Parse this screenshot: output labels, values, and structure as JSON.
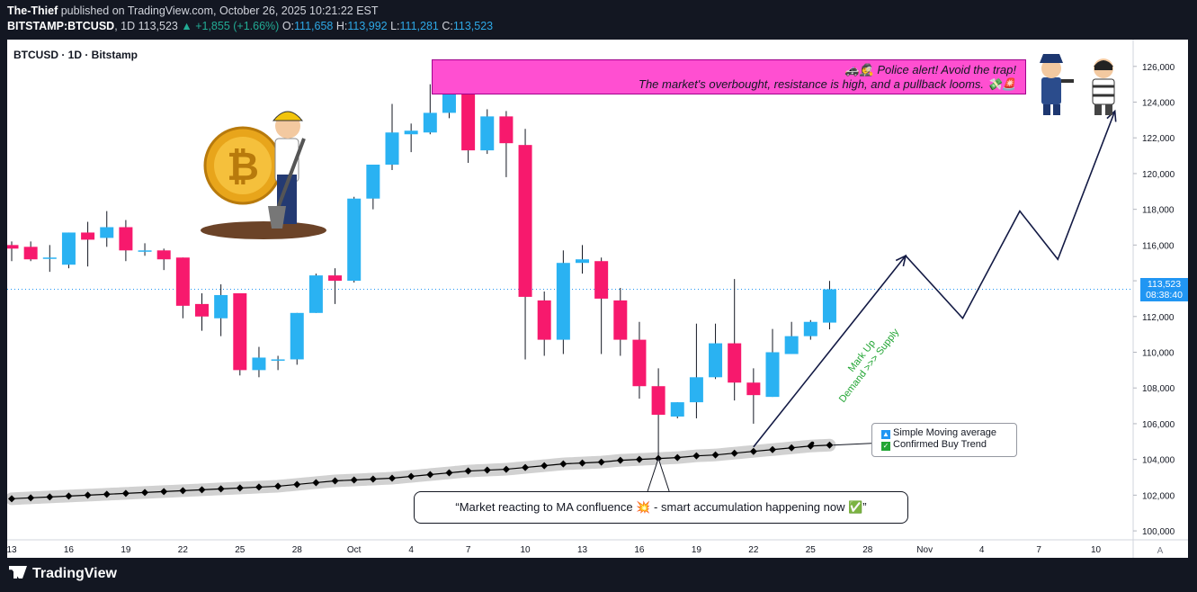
{
  "header": {
    "author": "The-Thief",
    "published": " published on TradingView.com, October 26, 2025 10:21:22 EST",
    "symbol": "BITSTAMP:BTCUSD",
    "interval": ", 1D ",
    "last": "113,523",
    "change": "▲ +1,855 (+1.66%)",
    "o_label": "O:",
    "o": "111,658",
    "h_label": "H:",
    "h": "113,992",
    "l_label": "L:",
    "l": "111,281",
    "c_label": "C:",
    "c": "113,523"
  },
  "chart_title": "BTCUSD · 1D · Bitstamp",
  "price_tag": {
    "price": "113,523",
    "countdown": "08:38:40"
  },
  "alert": {
    "line1": "🚓🕵 Police alert!  Avoid the trap!",
    "line2": "The market's overbought, resistance is high, and a pullback looms. 💸🚨"
  },
  "legend": {
    "line1": "Simple Moving average",
    "line2": "Confirmed Buy Trend"
  },
  "callout": "“Market reacting to MA confluence 💥 - smart accumulation happening now ✅”",
  "markup_label": {
    "line1": "Mark Up",
    "line2": "Demand >>> Supply"
  },
  "footer": {
    "brand": "TradingView",
    "scale_mode": "A"
  },
  "colors": {
    "up": "#2ab2f2",
    "down": "#f7196d",
    "ma": "#000000",
    "alert_bg": "#ff4fd1",
    "accent": "#2196f3"
  },
  "icons": [
    "bitcoin-miner-illustration",
    "police-illustration",
    "thief-illustration",
    "tradingview-logo-icon"
  ],
  "chart_data": {
    "type": "candlestick",
    "title": "BTCUSD · 1D · Bitstamp",
    "ylim": [
      99500,
      127500
    ],
    "y_ticks": [
      100000,
      102000,
      104000,
      106000,
      108000,
      110000,
      112000,
      114000,
      116000,
      118000,
      120000,
      122000,
      124000,
      126000
    ],
    "x_ticks": [
      {
        "day": 0,
        "label": "13"
      },
      {
        "day": 3,
        "label": "16"
      },
      {
        "day": 6,
        "label": "19"
      },
      {
        "day": 9,
        "label": "22"
      },
      {
        "day": 12,
        "label": "25"
      },
      {
        "day": 15,
        "label": "28"
      },
      {
        "day": 18,
        "label": "Oct"
      },
      {
        "day": 21,
        "label": "4"
      },
      {
        "day": 24,
        "label": "7"
      },
      {
        "day": 27,
        "label": "10"
      },
      {
        "day": 30,
        "label": "13"
      },
      {
        "day": 33,
        "label": "16"
      },
      {
        "day": 36,
        "label": "19"
      },
      {
        "day": 39,
        "label": "22"
      },
      {
        "day": 42,
        "label": "25"
      },
      {
        "day": 45,
        "label": "28"
      },
      {
        "day": 48,
        "label": "Nov"
      },
      {
        "day": 51,
        "label": "4"
      },
      {
        "day": 54,
        "label": "7"
      },
      {
        "day": 57,
        "label": "10"
      }
    ],
    "candles": [
      {
        "day": 0,
        "o": 116000,
        "h": 116200,
        "l": 115100,
        "c": 115800
      },
      {
        "day": 1,
        "o": 115900,
        "h": 116200,
        "l": 115100,
        "c": 115200
      },
      {
        "day": 2,
        "o": 115300,
        "h": 116000,
        "l": 114500,
        "c": 115300
      },
      {
        "day": 3,
        "o": 114900,
        "h": 116700,
        "l": 114700,
        "c": 116700
      },
      {
        "day": 4,
        "o": 116700,
        "h": 117300,
        "l": 114800,
        "c": 116300
      },
      {
        "day": 5,
        "o": 116400,
        "h": 117900,
        "l": 115900,
        "c": 117000
      },
      {
        "day": 6,
        "o": 117000,
        "h": 117400,
        "l": 115100,
        "c": 115700
      },
      {
        "day": 7,
        "o": 115700,
        "h": 116100,
        "l": 115400,
        "c": 115700
      },
      {
        "day": 8,
        "o": 115700,
        "h": 115800,
        "l": 114600,
        "c": 115200
      },
      {
        "day": 9,
        "o": 115300,
        "h": 115300,
        "l": 111900,
        "c": 112600
      },
      {
        "day": 10,
        "o": 112700,
        "h": 113300,
        "l": 111200,
        "c": 112000
      },
      {
        "day": 11,
        "o": 111900,
        "h": 113800,
        "l": 110900,
        "c": 113200
      },
      {
        "day": 12,
        "o": 113300,
        "h": 113300,
        "l": 108700,
        "c": 109000
      },
      {
        "day": 13,
        "o": 109000,
        "h": 110300,
        "l": 108600,
        "c": 109700
      },
      {
        "day": 14,
        "o": 109600,
        "h": 109800,
        "l": 109000,
        "c": 109600
      },
      {
        "day": 15,
        "o": 109600,
        "h": 112200,
        "l": 109300,
        "c": 112200
      },
      {
        "day": 16,
        "o": 112200,
        "h": 114400,
        "l": 112200,
        "c": 114300
      },
      {
        "day": 17,
        "o": 114300,
        "h": 114700,
        "l": 112700,
        "c": 114000
      },
      {
        "day": 18,
        "o": 114000,
        "h": 118700,
        "l": 113900,
        "c": 118600
      },
      {
        "day": 19,
        "o": 118600,
        "h": 120500,
        "l": 118000,
        "c": 120500
      },
      {
        "day": 20,
        "o": 120500,
        "h": 123900,
        "l": 120200,
        "c": 122300
      },
      {
        "day": 21,
        "o": 122200,
        "h": 122800,
        "l": 121200,
        "c": 122400
      },
      {
        "day": 22,
        "o": 122300,
        "h": 125000,
        "l": 122200,
        "c": 123400
      },
      {
        "day": 23,
        "o": 123400,
        "h": 126200,
        "l": 123100,
        "c": 124700
      },
      {
        "day": 24,
        "o": 124700,
        "h": 125100,
        "l": 120600,
        "c": 121300
      },
      {
        "day": 25,
        "o": 121300,
        "h": 123600,
        "l": 121100,
        "c": 123200
      },
      {
        "day": 26,
        "o": 123200,
        "h": 123500,
        "l": 119800,
        "c": 121700
      },
      {
        "day": 27,
        "o": 121600,
        "h": 122500,
        "l": 109600,
        "c": 113100
      },
      {
        "day": 28,
        "o": 112900,
        "h": 113400,
        "l": 109800,
        "c": 110700
      },
      {
        "day": 29,
        "o": 110700,
        "h": 115700,
        "l": 109900,
        "c": 115000
      },
      {
        "day": 30,
        "o": 115000,
        "h": 116000,
        "l": 114400,
        "c": 115200
      },
      {
        "day": 31,
        "o": 115100,
        "h": 115300,
        "l": 109900,
        "c": 113000
      },
      {
        "day": 32,
        "o": 112900,
        "h": 113600,
        "l": 109800,
        "c": 110700
      },
      {
        "day": 33,
        "o": 110700,
        "h": 111700,
        "l": 107400,
        "c": 108100
      },
      {
        "day": 34,
        "o": 108100,
        "h": 109100,
        "l": 103500,
        "c": 106500
      },
      {
        "day": 35,
        "o": 106400,
        "h": 107200,
        "l": 106300,
        "c": 107200
      },
      {
        "day": 36,
        "o": 107200,
        "h": 111600,
        "l": 106300,
        "c": 108600
      },
      {
        "day": 37,
        "o": 108600,
        "h": 111600,
        "l": 108500,
        "c": 110500
      },
      {
        "day": 38,
        "o": 110500,
        "h": 114100,
        "l": 107300,
        "c": 108300
      },
      {
        "day": 39,
        "o": 108300,
        "h": 109100,
        "l": 106000,
        "c": 107600
      },
      {
        "day": 40,
        "o": 107500,
        "h": 111300,
        "l": 107500,
        "c": 110000
      },
      {
        "day": 41,
        "o": 109900,
        "h": 111700,
        "l": 109900,
        "c": 110900
      },
      {
        "day": 42,
        "o": 110900,
        "h": 111800,
        "l": 110700,
        "c": 111700
      },
      {
        "day": 43,
        "o": 111658,
        "h": 113992,
        "l": 111281,
        "c": 113523
      }
    ],
    "ma": [
      {
        "day": 0,
        "v": 101800
      },
      {
        "day": 1,
        "v": 101850
      },
      {
        "day": 2,
        "v": 101900
      },
      {
        "day": 3,
        "v": 101950
      },
      {
        "day": 4,
        "v": 102000
      },
      {
        "day": 5,
        "v": 102050
      },
      {
        "day": 6,
        "v": 102100
      },
      {
        "day": 7,
        "v": 102150
      },
      {
        "day": 8,
        "v": 102200
      },
      {
        "day": 9,
        "v": 102250
      },
      {
        "day": 10,
        "v": 102300
      },
      {
        "day": 11,
        "v": 102350
      },
      {
        "day": 12,
        "v": 102400
      },
      {
        "day": 13,
        "v": 102450
      },
      {
        "day": 14,
        "v": 102500
      },
      {
        "day": 15,
        "v": 102600
      },
      {
        "day": 16,
        "v": 102700
      },
      {
        "day": 17,
        "v": 102800
      },
      {
        "day": 18,
        "v": 102850
      },
      {
        "day": 19,
        "v": 102900
      },
      {
        "day": 20,
        "v": 102950
      },
      {
        "day": 21,
        "v": 103050
      },
      {
        "day": 22,
        "v": 103150
      },
      {
        "day": 23,
        "v": 103250
      },
      {
        "day": 24,
        "v": 103350
      },
      {
        "day": 25,
        "v": 103400
      },
      {
        "day": 26,
        "v": 103450
      },
      {
        "day": 27,
        "v": 103550
      },
      {
        "day": 28,
        "v": 103650
      },
      {
        "day": 29,
        "v": 103750
      },
      {
        "day": 30,
        "v": 103800
      },
      {
        "day": 31,
        "v": 103850
      },
      {
        "day": 32,
        "v": 103950
      },
      {
        "day": 33,
        "v": 104000
      },
      {
        "day": 34,
        "v": 104050
      },
      {
        "day": 35,
        "v": 104100
      },
      {
        "day": 36,
        "v": 104200
      },
      {
        "day": 37,
        "v": 104250
      },
      {
        "day": 38,
        "v": 104350
      },
      {
        "day": 39,
        "v": 104450
      },
      {
        "day": 40,
        "v": 104550
      },
      {
        "day": 41,
        "v": 104650
      },
      {
        "day": 42,
        "v": 104750
      },
      {
        "day": 43,
        "v": 104800
      }
    ],
    "projection": [
      {
        "day": 39,
        "v": 104700
      },
      {
        "day": 47,
        "v": 115400
      },
      {
        "day": 50,
        "v": 111900
      },
      {
        "day": 53,
        "v": 117900
      },
      {
        "day": 55,
        "v": 115200
      },
      {
        "day": 58,
        "v": 123500
      }
    ],
    "last_price": 113523
  }
}
